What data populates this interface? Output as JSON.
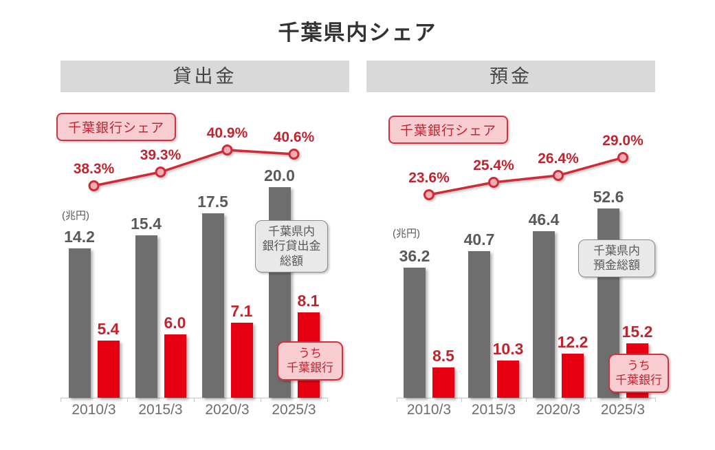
{
  "title": "千葉県内シェア",
  "colors": {
    "title": "#333333",
    "header_bg": "#d9d9d9",
    "header_text": "#454545",
    "total_bar": "#6e6e6e",
    "chiba_bar": "#e60012",
    "share_line": "#cf2a38",
    "marker_fill": "#f3aeb5",
    "share_text": "#c0242f",
    "value_text": "#595959",
    "axis_text": "#6e6e6e",
    "axis_line": "#c8c8c8",
    "pink_fill": "#f8cdd2",
    "pink_border": "#cf3341",
    "gray_callout_fill": "#e9e9e9",
    "gray_callout_border": "#8a8a8a"
  },
  "chart_data": [
    {
      "type": "bar",
      "panel_title": "貸出金",
      "unit_label": "(兆円)",
      "share_legend_label": "千葉銀行シェア",
      "categories": [
        "2010/3",
        "2015/3",
        "2020/3",
        "2025/3"
      ],
      "series": [
        {
          "name": "千葉県内銀行貸出金総額",
          "type": "bar",
          "role": "total",
          "values": [
            14.2,
            15.4,
            17.5,
            20.0
          ]
        },
        {
          "name": "うち千葉銀行",
          "type": "bar",
          "role": "chiba",
          "values": [
            5.4,
            6.0,
            7.1,
            8.1
          ]
        },
        {
          "name": "千葉銀行シェア",
          "type": "line",
          "unit": "%",
          "values": [
            38.3,
            39.3,
            40.9,
            40.6
          ]
        }
      ],
      "ylim": [
        0,
        29
      ],
      "share_ylim": [
        37.5,
        41.5
      ],
      "grid": false,
      "legend_position": "inline-callouts",
      "total_callout_lines": [
        "千葉県内",
        "銀行貸出金",
        "総額"
      ],
      "chiba_callout_lines": [
        "うち",
        "千葉銀行"
      ]
    },
    {
      "type": "bar",
      "panel_title": "預金",
      "unit_label": "(兆円)",
      "share_legend_label": "千葉銀行シェア",
      "categories": [
        "2010/3",
        "2015/3",
        "2020/3",
        "2025/3"
      ],
      "series": [
        {
          "name": "千葉県内預金総額",
          "type": "bar",
          "role": "total",
          "values": [
            36.2,
            40.7,
            46.4,
            52.6
          ]
        },
        {
          "name": "うち千葉銀行",
          "type": "bar",
          "role": "chiba",
          "values": [
            8.5,
            10.3,
            12.2,
            15.2
          ]
        },
        {
          "name": "千葉銀行シェア",
          "type": "line",
          "unit": "%",
          "values": [
            23.6,
            25.4,
            26.4,
            29.0
          ]
        }
      ],
      "ylim": [
        0,
        85
      ],
      "share_ylim": [
        22.5,
        29.5
      ],
      "grid": false,
      "legend_position": "inline-callouts",
      "total_callout_lines": [
        "千葉県内",
        "預金総額"
      ],
      "chiba_callout_lines": [
        "うち",
        "千葉銀行"
      ]
    }
  ]
}
